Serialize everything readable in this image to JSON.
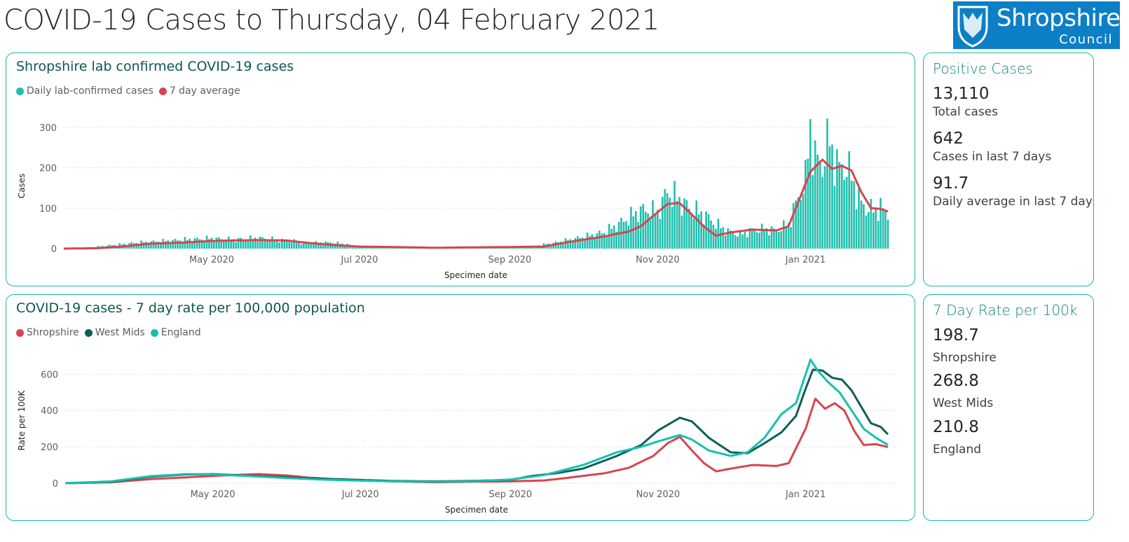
{
  "header": {
    "title": "COVID-19 Cases to Thursday, 04 February 2021",
    "logo": {
      "name": "Shropshire",
      "sub": "Council",
      "color": "#0c7fc6"
    }
  },
  "colors": {
    "border": "#1ab7a6",
    "daily": "#1fbfae",
    "shropshire": "#d64550",
    "west_mids": "#0e5f55",
    "england": "#16c0b0"
  },
  "kpi_positive": {
    "title": "Positive Cases",
    "items": [
      {
        "value": "13,110",
        "label": "Total cases"
      },
      {
        "value": "642",
        "label": "Cases in last 7 days"
      },
      {
        "value": "91.7",
        "label": "Daily average in last 7 days"
      }
    ]
  },
  "kpi_rate": {
    "title": "7 Day Rate per 100k",
    "items": [
      {
        "value": "198.7",
        "label": "Shropshire"
      },
      {
        "value": "268.8",
        "label": "West Mids"
      },
      {
        "value": "210.8",
        "label": "England"
      }
    ]
  },
  "chart_data": [
    {
      "type": "bar",
      "title": "Shropshire lab confirmed COVID-19 cases",
      "xlabel": "Specimen date",
      "ylabel": "Cases",
      "x_start": "2020-03-01",
      "x_end": "2021-02-04",
      "ylim": [
        0,
        310
      ],
      "yticks": [
        0,
        100,
        200,
        300
      ],
      "xticks": [
        {
          "date": "2020-05-01",
          "label": "May 2020"
        },
        {
          "date": "2020-07-01",
          "label": "Jul 2020"
        },
        {
          "date": "2020-09-01",
          "label": "Sep 2020"
        },
        {
          "date": "2020-11-01",
          "label": "Nov 2020"
        },
        {
          "date": "2021-01-01",
          "label": "Jan 2021"
        }
      ],
      "grid": true,
      "legend_position": "top-left",
      "series": [
        {
          "name": "Daily lab-confirmed cases",
          "kind": "bar",
          "points": [
            [
              "2020-03-01",
              0
            ],
            [
              "2020-03-10",
              2
            ],
            [
              "2020-03-20",
              8
            ],
            [
              "2020-04-01",
              15
            ],
            [
              "2020-04-10",
              18
            ],
            [
              "2020-04-20",
              22
            ],
            [
              "2020-05-01",
              25
            ],
            [
              "2020-05-10",
              22
            ],
            [
              "2020-05-20",
              26
            ],
            [
              "2020-06-01",
              20
            ],
            [
              "2020-06-10",
              14
            ],
            [
              "2020-06-20",
              15
            ],
            [
              "2020-07-01",
              6
            ],
            [
              "2020-07-15",
              4
            ],
            [
              "2020-08-01",
              2
            ],
            [
              "2020-08-15",
              3
            ],
            [
              "2020-09-01",
              4
            ],
            [
              "2020-09-10",
              5
            ],
            [
              "2020-09-20",
              15
            ],
            [
              "2020-10-01",
              28
            ],
            [
              "2020-10-10",
              40
            ],
            [
              "2020-10-20",
              75
            ],
            [
              "2020-10-25",
              95
            ],
            [
              "2020-11-01",
              90
            ],
            [
              "2020-11-05",
              140
            ],
            [
              "2020-11-10",
              120
            ],
            [
              "2020-11-15",
              95
            ],
            [
              "2020-11-20",
              85
            ],
            [
              "2020-11-25",
              60
            ],
            [
              "2020-12-01",
              40
            ],
            [
              "2020-12-05",
              35
            ],
            [
              "2020-12-10",
              45
            ],
            [
              "2020-12-15",
              48
            ],
            [
              "2020-12-20",
              45
            ],
            [
              "2020-12-25",
              60
            ],
            [
              "2020-12-28",
              110
            ],
            [
              "2021-01-01",
              170
            ],
            [
              "2021-01-03",
              305
            ],
            [
              "2021-01-05",
              220
            ],
            [
              "2021-01-08",
              210
            ],
            [
              "2021-01-11",
              270
            ],
            [
              "2021-01-14",
              200
            ],
            [
              "2021-01-17",
              205
            ],
            [
              "2021-01-20",
              180
            ],
            [
              "2021-01-23",
              120
            ],
            [
              "2021-01-26",
              100
            ],
            [
              "2021-01-29",
              95
            ],
            [
              "2021-02-01",
              100
            ],
            [
              "2021-02-04",
              88
            ]
          ]
        },
        {
          "name": "7 day average",
          "kind": "line",
          "points": [
            [
              "2020-03-01",
              0
            ],
            [
              "2020-03-15",
              1
            ],
            [
              "2020-03-25",
              5
            ],
            [
              "2020-04-05",
              12
            ],
            [
              "2020-04-20",
              15
            ],
            [
              "2020-05-01",
              19
            ],
            [
              "2020-05-10",
              20
            ],
            [
              "2020-05-20",
              21
            ],
            [
              "2020-06-01",
              20
            ],
            [
              "2020-06-10",
              14
            ],
            [
              "2020-06-20",
              9
            ],
            [
              "2020-07-01",
              5
            ],
            [
              "2020-07-15",
              4
            ],
            [
              "2020-08-01",
              2
            ],
            [
              "2020-08-15",
              3
            ],
            [
              "2020-09-01",
              4
            ],
            [
              "2020-09-15",
              5
            ],
            [
              "2020-09-25",
              16
            ],
            [
              "2020-10-10",
              30
            ],
            [
              "2020-10-20",
              42
            ],
            [
              "2020-10-25",
              55
            ],
            [
              "2020-11-01",
              90
            ],
            [
              "2020-11-05",
              110
            ],
            [
              "2020-11-10",
              113
            ],
            [
              "2020-11-15",
              85
            ],
            [
              "2020-11-20",
              55
            ],
            [
              "2020-11-25",
              32
            ],
            [
              "2020-12-01",
              40
            ],
            [
              "2020-12-10",
              47
            ],
            [
              "2020-12-20",
              45
            ],
            [
              "2020-12-25",
              55
            ],
            [
              "2020-12-30",
              130
            ],
            [
              "2021-01-03",
              190
            ],
            [
              "2021-01-08",
              220
            ],
            [
              "2021-01-12",
              197
            ],
            [
              "2021-01-16",
              205
            ],
            [
              "2021-01-20",
              193
            ],
            [
              "2021-01-24",
              140
            ],
            [
              "2021-01-28",
              100
            ],
            [
              "2021-02-01",
              98
            ],
            [
              "2021-02-04",
              92
            ]
          ]
        }
      ]
    },
    {
      "type": "line",
      "title": "COVID-19 cases - 7 day rate per 100,000 population",
      "xlabel": "Specimen date",
      "ylabel": "Rate per 100K",
      "x_start": "2020-03-01",
      "x_end": "2021-02-04",
      "ylim": [
        0,
        690
      ],
      "yticks": [
        0,
        200,
        400,
        600
      ],
      "xticks": [
        {
          "date": "2020-05-01",
          "label": "May 2020"
        },
        {
          "date": "2020-07-01",
          "label": "Jul 2020"
        },
        {
          "date": "2020-09-01",
          "label": "Sep 2020"
        },
        {
          "date": "2020-11-01",
          "label": "Nov 2020"
        },
        {
          "date": "2021-01-01",
          "label": "Jan 2021"
        }
      ],
      "grid": true,
      "legend_position": "top-left",
      "series": [
        {
          "name": "Shropshire",
          "points": [
            [
              "2020-03-01",
              0
            ],
            [
              "2020-03-20",
              5
            ],
            [
              "2020-04-05",
              22
            ],
            [
              "2020-04-20",
              32
            ],
            [
              "2020-05-01",
              40
            ],
            [
              "2020-05-10",
              45
            ],
            [
              "2020-05-20",
              50
            ],
            [
              "2020-06-01",
              42
            ],
            [
              "2020-06-10",
              30
            ],
            [
              "2020-06-20",
              22
            ],
            [
              "2020-07-01",
              15
            ],
            [
              "2020-07-15",
              10
            ],
            [
              "2020-08-01",
              5
            ],
            [
              "2020-08-15",
              8
            ],
            [
              "2020-09-01",
              10
            ],
            [
              "2020-09-15",
              15
            ],
            [
              "2020-09-25",
              30
            ],
            [
              "2020-10-10",
              55
            ],
            [
              "2020-10-20",
              85
            ],
            [
              "2020-10-30",
              150
            ],
            [
              "2020-11-05",
              220
            ],
            [
              "2020-11-10",
              255
            ],
            [
              "2020-11-15",
              180
            ],
            [
              "2020-11-20",
              110
            ],
            [
              "2020-11-25",
              65
            ],
            [
              "2020-12-01",
              80
            ],
            [
              "2020-12-10",
              100
            ],
            [
              "2020-12-20",
              95
            ],
            [
              "2020-12-25",
              110
            ],
            [
              "2021-01-01",
              300
            ],
            [
              "2021-01-05",
              465
            ],
            [
              "2021-01-09",
              410
            ],
            [
              "2021-01-13",
              440
            ],
            [
              "2021-01-17",
              400
            ],
            [
              "2021-01-21",
              290
            ],
            [
              "2021-01-25",
              210
            ],
            [
              "2021-01-30",
              215
            ],
            [
              "2021-02-04",
              199
            ]
          ]
        },
        {
          "name": "West Mids",
          "points": [
            [
              "2020-03-01",
              0
            ],
            [
              "2020-03-20",
              8
            ],
            [
              "2020-04-05",
              35
            ],
            [
              "2020-04-20",
              48
            ],
            [
              "2020-05-01",
              50
            ],
            [
              "2020-05-15",
              42
            ],
            [
              "2020-06-01",
              32
            ],
            [
              "2020-06-15",
              25
            ],
            [
              "2020-07-01",
              18
            ],
            [
              "2020-07-15",
              12
            ],
            [
              "2020-08-01",
              10
            ],
            [
              "2020-08-15",
              12
            ],
            [
              "2020-09-01",
              18
            ],
            [
              "2020-09-10",
              40
            ],
            [
              "2020-09-20",
              55
            ],
            [
              "2020-10-01",
              80
            ],
            [
              "2020-10-15",
              150
            ],
            [
              "2020-10-25",
              210
            ],
            [
              "2020-11-01",
              290
            ],
            [
              "2020-11-10",
              360
            ],
            [
              "2020-11-15",
              340
            ],
            [
              "2020-11-22",
              250
            ],
            [
              "2020-12-01",
              170
            ],
            [
              "2020-12-08",
              165
            ],
            [
              "2020-12-15",
              220
            ],
            [
              "2020-12-22",
              280
            ],
            [
              "2020-12-28",
              370
            ],
            [
              "2021-01-01",
              520
            ],
            [
              "2021-01-04",
              625
            ],
            [
              "2021-01-08",
              620
            ],
            [
              "2021-01-12",
              580
            ],
            [
              "2021-01-16",
              570
            ],
            [
              "2021-01-20",
              510
            ],
            [
              "2021-01-24",
              420
            ],
            [
              "2021-01-28",
              330
            ],
            [
              "2021-02-01",
              310
            ],
            [
              "2021-02-04",
              269
            ]
          ]
        },
        {
          "name": "England",
          "points": [
            [
              "2020-03-01",
              0
            ],
            [
              "2020-03-20",
              10
            ],
            [
              "2020-04-05",
              38
            ],
            [
              "2020-04-20",
              50
            ],
            [
              "2020-05-01",
              48
            ],
            [
              "2020-05-15",
              40
            ],
            [
              "2020-06-01",
              28
            ],
            [
              "2020-06-15",
              20
            ],
            [
              "2020-07-01",
              14
            ],
            [
              "2020-07-15",
              10
            ],
            [
              "2020-08-01",
              8
            ],
            [
              "2020-08-15",
              10
            ],
            [
              "2020-09-01",
              20
            ],
            [
              "2020-09-15",
              45
            ],
            [
              "2020-10-01",
              100
            ],
            [
              "2020-10-15",
              170
            ],
            [
              "2020-10-25",
              200
            ],
            [
              "2020-11-01",
              230
            ],
            [
              "2020-11-10",
              265
            ],
            [
              "2020-11-15",
              240
            ],
            [
              "2020-11-22",
              180
            ],
            [
              "2020-12-01",
              150
            ],
            [
              "2020-12-08",
              170
            ],
            [
              "2020-12-15",
              250
            ],
            [
              "2020-12-22",
              380
            ],
            [
              "2020-12-28",
              440
            ],
            [
              "2021-01-01",
              600
            ],
            [
              "2021-01-03",
              680
            ],
            [
              "2021-01-06",
              620
            ],
            [
              "2021-01-10",
              560
            ],
            [
              "2021-01-15",
              500
            ],
            [
              "2021-01-20",
              400
            ],
            [
              "2021-01-25",
              300
            ],
            [
              "2021-01-30",
              250
            ],
            [
              "2021-02-04",
              211
            ]
          ]
        }
      ]
    }
  ]
}
